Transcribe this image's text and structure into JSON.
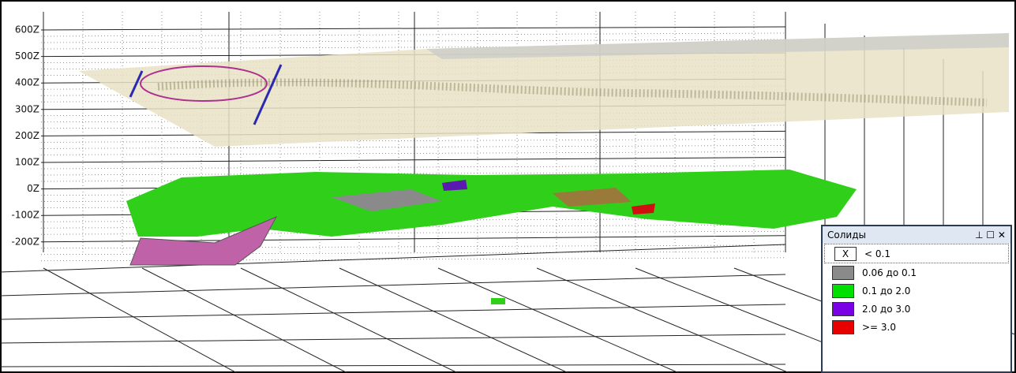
{
  "axis_labels": [
    "600Z",
    "500Z",
    "400Z",
    "300Z",
    "200Z",
    "100Z",
    "0Z",
    "-100Z",
    "-200Z"
  ],
  "legend": {
    "title": "Солиды",
    "items": [
      {
        "swatch_text": "X",
        "label": "< 0.1",
        "color": "#ffffff"
      },
      {
        "label": "0.06 до 0.1",
        "color": "#8a8a8a"
      },
      {
        "label": "0.1 до 2.0",
        "color": "#00e000"
      },
      {
        "label": "2.0 до 3.0",
        "color": "#7a00e6"
      },
      {
        "label": ">= 3.0",
        "color": "#e60000"
      }
    ]
  }
}
